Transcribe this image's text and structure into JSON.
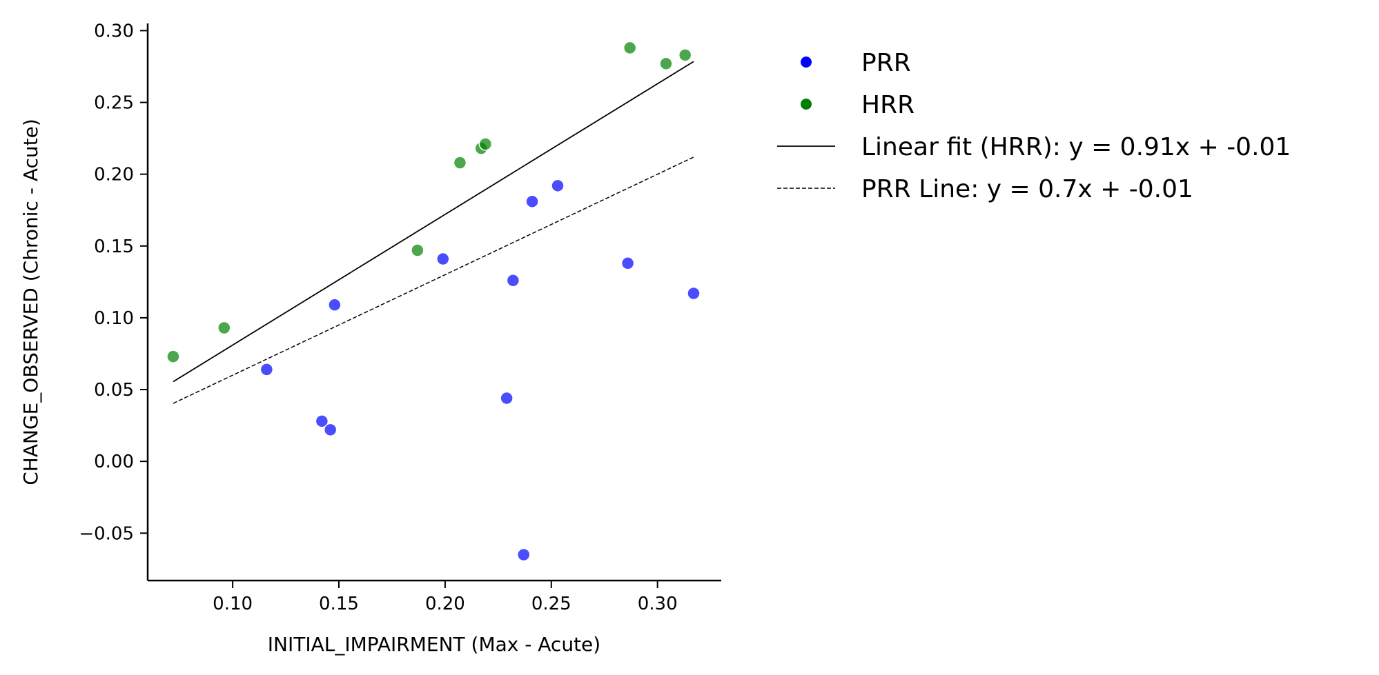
{
  "chart_data": {
    "type": "scatter",
    "title": "",
    "xlabel": "INITIAL_IMPAIRMENT (Max - Acute)",
    "ylabel": "CHANGE_OBSERVED (Chronic - Acute)",
    "xlim": [
      0.06,
      0.33
    ],
    "ylim": [
      -0.083,
      0.305
    ],
    "xticks": [
      {
        "value": 0.1,
        "label": "0.10"
      },
      {
        "value": 0.15,
        "label": "0.15"
      },
      {
        "value": 0.2,
        "label": "0.20"
      },
      {
        "value": 0.25,
        "label": "0.25"
      },
      {
        "value": 0.3,
        "label": "0.30"
      }
    ],
    "yticks": [
      {
        "value": -0.05,
        "label": "−0.05"
      },
      {
        "value": 0.0,
        "label": "0.00"
      },
      {
        "value": 0.05,
        "label": "0.05"
      },
      {
        "value": 0.1,
        "label": "0.10"
      },
      {
        "value": 0.15,
        "label": "0.15"
      },
      {
        "value": 0.2,
        "label": "0.20"
      },
      {
        "value": 0.25,
        "label": "0.25"
      },
      {
        "value": 0.3,
        "label": "0.30"
      }
    ],
    "grid": false,
    "legend_position": "outside-right",
    "series": [
      {
        "name": "PRR",
        "color": "#0000ff",
        "points": [
          {
            "x": 0.116,
            "y": 0.064
          },
          {
            "x": 0.142,
            "y": 0.028
          },
          {
            "x": 0.146,
            "y": 0.022
          },
          {
            "x": 0.148,
            "y": 0.109
          },
          {
            "x": 0.199,
            "y": 0.141
          },
          {
            "x": 0.229,
            "y": 0.044
          },
          {
            "x": 0.232,
            "y": 0.126
          },
          {
            "x": 0.237,
            "y": -0.065
          },
          {
            "x": 0.241,
            "y": 0.181
          },
          {
            "x": 0.253,
            "y": 0.192
          },
          {
            "x": 0.286,
            "y": 0.138
          },
          {
            "x": 0.317,
            "y": 0.117
          }
        ]
      },
      {
        "name": "HRR",
        "color": "#008000",
        "points": [
          {
            "x": 0.072,
            "y": 0.073
          },
          {
            "x": 0.096,
            "y": 0.093
          },
          {
            "x": 0.187,
            "y": 0.147
          },
          {
            "x": 0.207,
            "y": 0.208
          },
          {
            "x": 0.217,
            "y": 0.218
          },
          {
            "x": 0.219,
            "y": 0.221
          },
          {
            "x": 0.287,
            "y": 0.288
          },
          {
            "x": 0.304,
            "y": 0.277
          },
          {
            "x": 0.313,
            "y": 0.283
          }
        ]
      }
    ],
    "lines": [
      {
        "name": "Linear fit (HRR): y = 0.91x + -0.01",
        "slope": 0.91,
        "intercept": -0.01,
        "x_range": [
          0.072,
          0.317
        ],
        "color": "#000000",
        "style": "solid"
      },
      {
        "name": "PRR Line: y = 0.7x + -0.01",
        "slope": 0.7,
        "intercept": -0.01,
        "x_range": [
          0.072,
          0.317
        ],
        "color": "#000000",
        "style": "dashed"
      }
    ]
  }
}
